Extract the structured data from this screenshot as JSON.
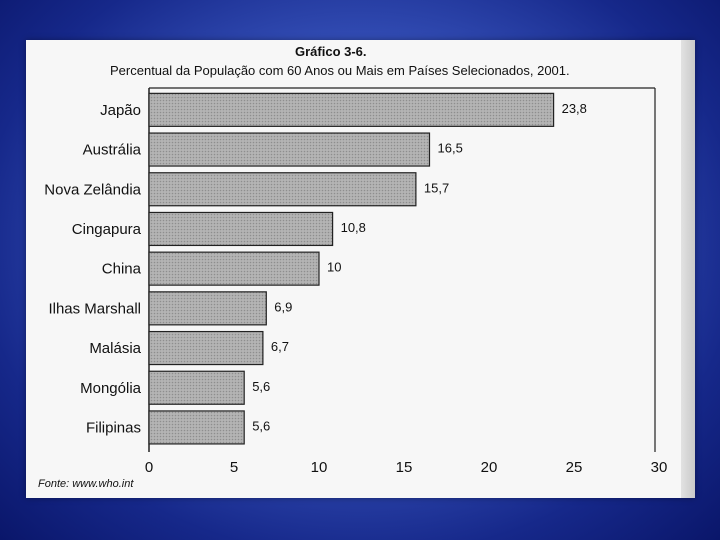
{
  "chart_data": {
    "type": "bar",
    "orientation": "horizontal",
    "title": "Gráfico 3-6.",
    "subtitle": "Percentual da População com 60 Anos ou Mais em Países Selecionados, 2001.",
    "categories": [
      "Japão",
      "Austrália",
      "Nova Zelândia",
      "Cingapura",
      "China",
      "Ilhas Marshall",
      "Malásia",
      "Mongólia",
      "Filipinas"
    ],
    "values": [
      23.8,
      16.5,
      15.7,
      10.8,
      10,
      6.9,
      6.7,
      5.6,
      5.6
    ],
    "value_labels": [
      "23,8",
      "16,5",
      "15,7",
      "10,8",
      "10",
      "6,9",
      "6,7",
      "5,6",
      "5,6"
    ],
    "xlim": [
      0,
      30
    ],
    "xticks": [
      "0",
      "5",
      "10",
      "15",
      "20",
      "25",
      "30"
    ],
    "bar_color": "#a9a9a9",
    "source": "Fonte: www.who.int"
  }
}
